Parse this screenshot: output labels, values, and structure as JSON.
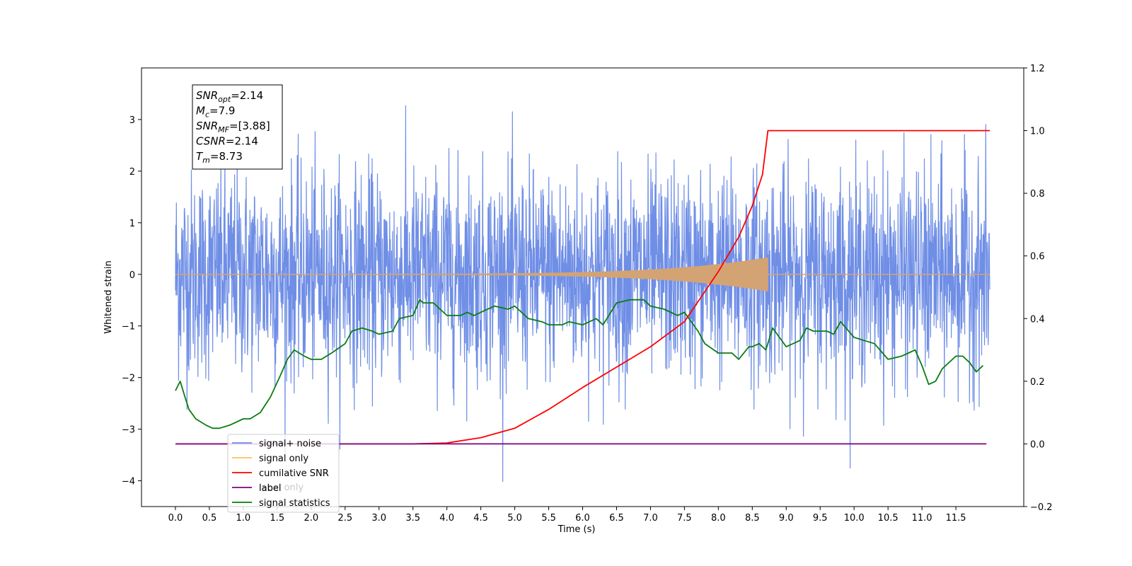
{
  "chart_data": {
    "type": "line",
    "xlabel": "Time (s)",
    "ylabel": "Whitened strain",
    "xlim": [
      -0.5,
      12.5
    ],
    "ylim_left": [
      -4.5,
      4.0
    ],
    "ylim_right": [
      -0.2,
      1.2
    ],
    "x_ticks": [
      0.0,
      0.5,
      1.0,
      1.5,
      2.0,
      2.5,
      3.0,
      3.5,
      4.0,
      4.5,
      5.0,
      5.5,
      6.0,
      6.5,
      7.0,
      7.5,
      8.0,
      8.5,
      9.0,
      9.5,
      10.0,
      10.5,
      11.0,
      11.5
    ],
    "x_tick_labels": [
      "0.0",
      "0.5",
      "1.0",
      "1.5",
      "2.0",
      "2.5",
      "3.0",
      "3.5",
      "4.0",
      "4.5",
      "5.0",
      "5.5",
      "6.0",
      "6.5",
      "7.0",
      "7.5",
      "8.0",
      "8.5",
      "9.0",
      "9.5",
      "10.0",
      "10.5",
      "11.0",
      "11.5"
    ],
    "y_left_ticks": [
      3,
      2,
      1,
      0,
      -1,
      -2,
      -3,
      -4
    ],
    "y_left_tick_labels": [
      "3",
      "2",
      "1",
      "0",
      "−1",
      "−2",
      "−3",
      "−4"
    ],
    "y_right_ticks": [
      1.2,
      1.0,
      0.8,
      0.6,
      0.4,
      0.2,
      0.0,
      -0.2
    ],
    "y_right_tick_labels": [
      "1.2",
      "1.0",
      "0.8",
      "0.6",
      "0.4",
      "0.2",
      "0.0",
      "−0.2"
    ],
    "annotation": {
      "lines": [
        {
          "base": "SNR",
          "sub": "opt",
          "rest": "=2.14"
        },
        {
          "base": "M",
          "sub": "c",
          "rest": "=7.9"
        },
        {
          "base": "SNR",
          "sub": "MF",
          "rest": "=[3.88]"
        },
        {
          "base": "CSNR",
          "sub": "",
          "rest": "=2.14"
        },
        {
          "base": "T",
          "sub": "m",
          "rest": "=8.73"
        }
      ]
    },
    "legend": {
      "placement": "lower-left",
      "entries": [
        {
          "label": "signal+ noise",
          "color": "#6f8ee6"
        },
        {
          "label": "signal only",
          "color": "#ffbf60"
        },
        {
          "label": "cumilative SNR",
          "color": "#ff0000"
        },
        {
          "label": "label",
          "color": "#800080"
        },
        {
          "label": "signal statistics",
          "color": "#008000"
        }
      ],
      "hidden_label": "label only"
    },
    "series": [
      {
        "name": "signal+ noise",
        "axis": "left",
        "color": "#6f8ee6",
        "x_range": [
          0,
          12.0
        ],
        "noise_std": 1.0,
        "noise_clip": [
          -4.1,
          3.6
        ]
      },
      {
        "name": "signal only",
        "axis": "left",
        "color": "#d4a373",
        "x_range": [
          0,
          12.0
        ],
        "chirp_end": 8.73,
        "peak_amp": 0.32
      },
      {
        "name": "cumilative SNR",
        "axis": "right",
        "x": [
          0.0,
          3.5,
          4.0,
          4.5,
          5.0,
          5.5,
          6.0,
          6.5,
          7.0,
          7.5,
          8.0,
          8.3,
          8.5,
          8.65,
          8.73,
          12.0
        ],
        "y": [
          0.0,
          0.0,
          0.003,
          0.02,
          0.05,
          0.11,
          0.18,
          0.245,
          0.31,
          0.39,
          0.55,
          0.66,
          0.76,
          0.86,
          1.0,
          1.0
        ]
      },
      {
        "name": "label",
        "axis": "right",
        "color": "#800080",
        "x": [
          0.0,
          11.95
        ],
        "y": [
          0.0,
          0.0
        ]
      },
      {
        "name": "signal statistics",
        "axis": "right",
        "x": [
          0.0,
          0.07,
          0.14,
          0.2,
          0.3,
          0.45,
          0.55,
          0.65,
          0.8,
          1.0,
          1.1,
          1.25,
          1.4,
          1.55,
          1.65,
          1.75,
          1.9,
          2.0,
          2.15,
          2.3,
          2.5,
          2.6,
          2.75,
          2.9,
          3.0,
          3.2,
          3.3,
          3.5,
          3.6,
          3.65,
          3.8,
          4.0,
          4.2,
          4.3,
          4.4,
          4.5,
          4.7,
          4.9,
          5.0,
          5.2,
          5.4,
          5.5,
          5.7,
          5.8,
          6.0,
          6.2,
          6.3,
          6.5,
          6.7,
          6.9,
          7.0,
          7.2,
          7.4,
          7.5,
          7.7,
          7.8,
          8.0,
          8.2,
          8.3,
          8.45,
          8.5,
          8.6,
          8.7,
          8.8,
          8.9,
          9.0,
          9.1,
          9.2,
          9.3,
          9.4,
          9.6,
          9.7,
          9.8,
          10.0,
          10.3,
          10.5,
          10.7,
          10.8,
          10.9,
          11.0,
          11.1,
          11.2,
          11.3,
          11.5,
          11.6,
          11.7,
          11.8,
          11.9
        ],
        "y": [
          0.17,
          0.2,
          0.15,
          0.11,
          0.08,
          0.06,
          0.05,
          0.05,
          0.06,
          0.08,
          0.08,
          0.1,
          0.15,
          0.22,
          0.27,
          0.3,
          0.28,
          0.27,
          0.27,
          0.29,
          0.32,
          0.36,
          0.37,
          0.36,
          0.35,
          0.36,
          0.4,
          0.41,
          0.46,
          0.45,
          0.45,
          0.41,
          0.41,
          0.42,
          0.41,
          0.42,
          0.44,
          0.43,
          0.44,
          0.4,
          0.39,
          0.38,
          0.38,
          0.39,
          0.38,
          0.4,
          0.38,
          0.45,
          0.46,
          0.46,
          0.44,
          0.43,
          0.41,
          0.42,
          0.36,
          0.32,
          0.29,
          0.29,
          0.27,
          0.31,
          0.31,
          0.32,
          0.3,
          0.37,
          0.34,
          0.31,
          0.32,
          0.33,
          0.37,
          0.36,
          0.36,
          0.35,
          0.39,
          0.34,
          0.32,
          0.27,
          0.28,
          0.29,
          0.3,
          0.25,
          0.19,
          0.2,
          0.24,
          0.28,
          0.28,
          0.26,
          0.23,
          0.25
        ]
      }
    ]
  }
}
